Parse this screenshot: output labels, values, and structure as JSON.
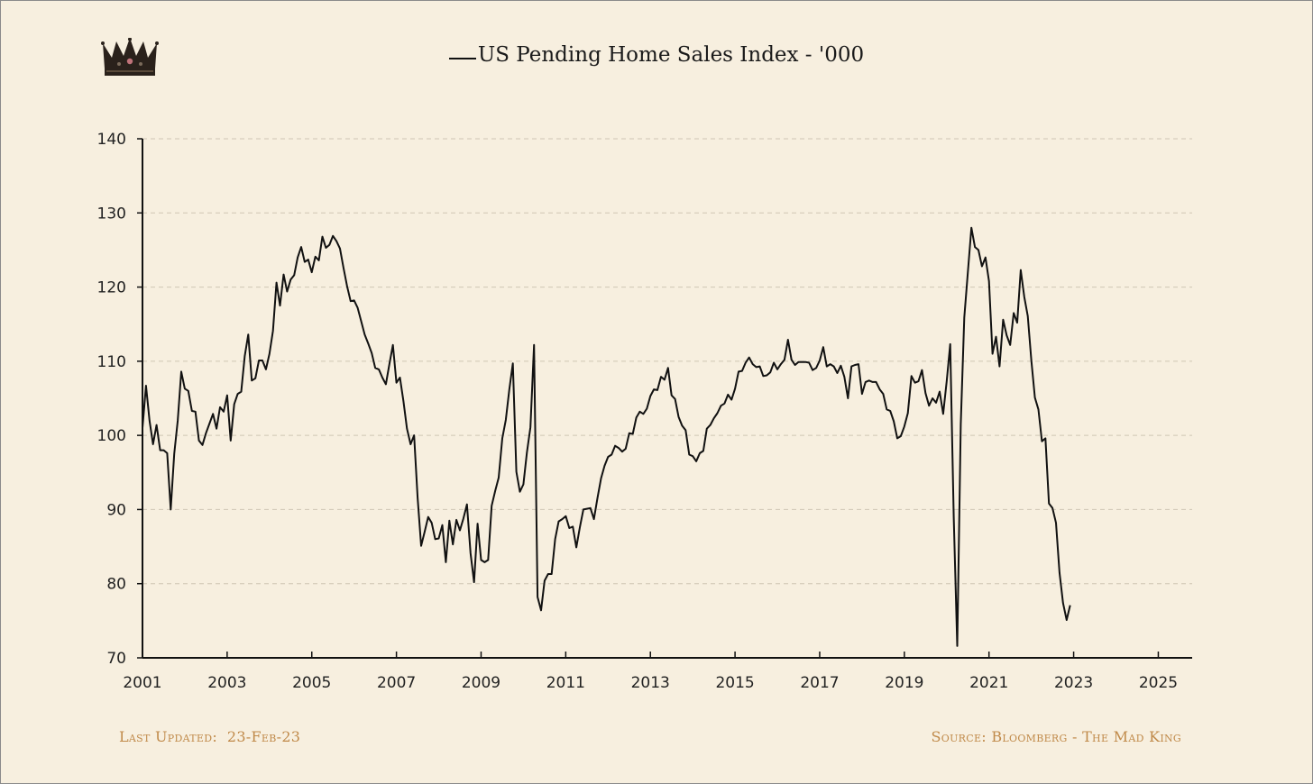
{
  "logo": {
    "icon": "crown-icon"
  },
  "footer": {
    "updated_label": "Last Updated:",
    "updated_value": "23-Feb-23",
    "source": "Source: Bloomberg - The Mad King"
  },
  "colors": {
    "background": "#f7efdf",
    "line": "#111111",
    "footer": "#c08a4a",
    "grid": "#cfc6b4"
  },
  "chart_data": {
    "type": "line",
    "title": "US Pending Home Sales Index - '000",
    "xlabel": "",
    "ylabel": "",
    "xlim": [
      2001,
      2025.8
    ],
    "ylim": [
      70,
      140
    ],
    "yticks": [
      70,
      80,
      90,
      100,
      110,
      120,
      130,
      140
    ],
    "xticks": [
      2001,
      2003,
      2005,
      2007,
      2009,
      2011,
      2013,
      2015,
      2017,
      2019,
      2021,
      2023,
      2025
    ],
    "grid": "horizontal dashed",
    "legend": "top-center",
    "series": [
      {
        "name": "US Pending Home Sales Index - '000",
        "color": "#111111",
        "start_year": 2001.0,
        "step_months": 1,
        "values": [
          101.0,
          106.7,
          102.0,
          98.8,
          101.4,
          98.0,
          98.0,
          97.6,
          90.0,
          97.5,
          102.0,
          108.6,
          106.3,
          106.0,
          103.3,
          103.2,
          99.3,
          98.7,
          100.3,
          101.6,
          102.9,
          100.9,
          103.8,
          103.2,
          105.4,
          99.3,
          104.2,
          105.6,
          105.9,
          110.7,
          113.6,
          107.4,
          107.7,
          110.1,
          110.1,
          108.9,
          111.0,
          114.1,
          120.6,
          117.5,
          121.7,
          119.4,
          121.0,
          121.6,
          124.0,
          125.4,
          123.4,
          123.7,
          122.0,
          124.1,
          123.6,
          126.8,
          125.3,
          125.7,
          126.9,
          126.2,
          125.2,
          122.6,
          120.1,
          118.1,
          118.2,
          117.2,
          115.4,
          113.6,
          112.4,
          111.1,
          109.1,
          108.9,
          107.8,
          106.9,
          109.6,
          112.2,
          107.1,
          107.8,
          104.6,
          100.9,
          98.8,
          100.0,
          91.6,
          85.1,
          87.0,
          89.0,
          88.2,
          86.0,
          86.1,
          87.9,
          82.9,
          88.5,
          85.3,
          88.6,
          87.2,
          88.8,
          90.7,
          84.1,
          80.2,
          88.1,
          83.2,
          82.9,
          83.2,
          90.5,
          92.5,
          94.3,
          99.6,
          102.1,
          106.2,
          109.7,
          95.1,
          92.4,
          93.4,
          97.7,
          101.1,
          112.2,
          78.2,
          76.4,
          80.4,
          81.3,
          81.3,
          86.0,
          88.4,
          88.7,
          89.1,
          87.5,
          87.7,
          84.9,
          87.6,
          90.0,
          90.1,
          90.2,
          88.7,
          91.6,
          94.2,
          95.9,
          97.1,
          97.4,
          98.6,
          98.3,
          97.8,
          98.2,
          100.3,
          100.2,
          102.4,
          103.2,
          102.9,
          103.6,
          105.3,
          106.2,
          106.1,
          107.9,
          107.5,
          109.1,
          105.4,
          104.9,
          102.5,
          101.3,
          100.7,
          97.4,
          97.2,
          96.5,
          97.6,
          97.9,
          100.9,
          101.4,
          102.3,
          103.0,
          104.0,
          104.3,
          105.5,
          104.8,
          106.3,
          108.6,
          108.7,
          109.8,
          110.5,
          109.6,
          109.2,
          109.3,
          108.0,
          108.1,
          108.5,
          109.8,
          108.9,
          109.6,
          110.2,
          112.9,
          110.2,
          109.5,
          109.9,
          109.9,
          109.9,
          109.8,
          108.8,
          109.1,
          110.1,
          111.9,
          109.3,
          109.6,
          109.3,
          108.4,
          109.4,
          107.9,
          105.0,
          109.3,
          109.5,
          109.6,
          105.6,
          107.2,
          107.4,
          107.2,
          107.2,
          106.2,
          105.6,
          103.5,
          103.3,
          101.9,
          99.6,
          99.9,
          101.2,
          103.0,
          108.0,
          107.1,
          107.3,
          108.8,
          105.7,
          104.0,
          105.0,
          104.4,
          105.9,
          102.9,
          107.3,
          112.3,
          89.0,
          71.6,
          101.5,
          115.9,
          121.9,
          128.0,
          125.4,
          125.0,
          122.8,
          124.0,
          120.8,
          111.0,
          113.3,
          109.3,
          115.6,
          113.5,
          112.2,
          116.5,
          115.2,
          122.3,
          118.7,
          116.1,
          110.2,
          105.1,
          103.5,
          99.2,
          99.6,
          90.8,
          90.2,
          88.2,
          81.5,
          77.4,
          75.1,
          77.1
        ]
      }
    ]
  }
}
